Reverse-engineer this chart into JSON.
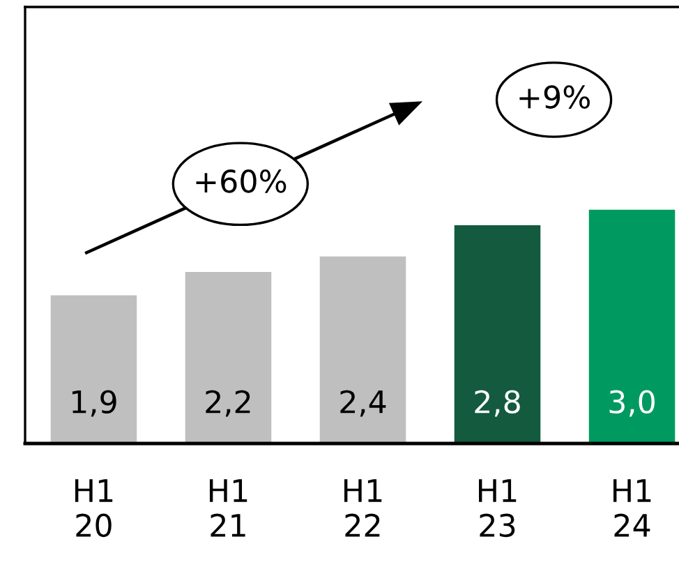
{
  "chart_data": {
    "type": "bar",
    "categories": [
      "H1\n20",
      "H1\n21",
      "H1\n22",
      "H1\n23",
      "H1\n24"
    ],
    "values": [
      1.9,
      2.2,
      2.4,
      2.8,
      3.0
    ],
    "colors": [
      "#bfbfbf",
      "#bfbfbf",
      "#bfbfbf",
      "#135a3f",
      "#009a60"
    ],
    "value_labels": [
      "1,9",
      "2,2",
      "2,4",
      "2,8",
      "3,0"
    ],
    "ylim": [
      0,
      5.6
    ],
    "tick_labels": "x",
    "grid": false,
    "legend": false,
    "annotations": [
      "+60%",
      "+9%"
    ]
  }
}
